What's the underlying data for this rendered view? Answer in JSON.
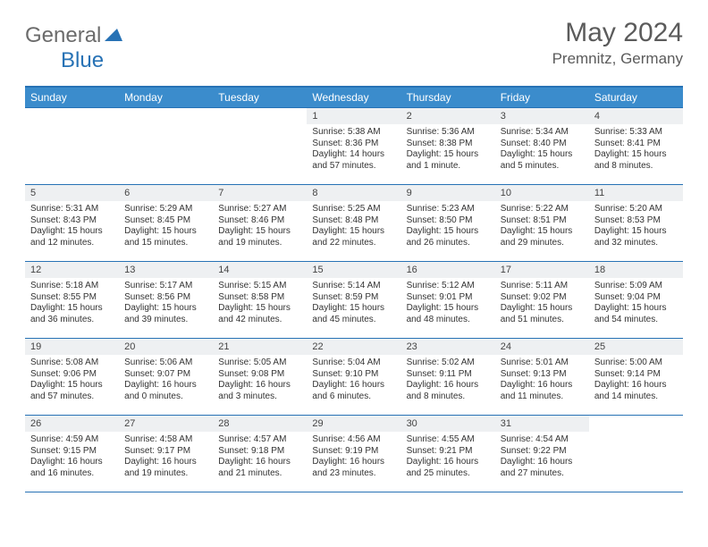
{
  "logo": {
    "text_a": "General",
    "text_b": "Blue"
  },
  "title": "May 2024",
  "location": "Premnitz, Germany",
  "colors": {
    "header_bg": "#3b8ccc",
    "border": "#2772b5",
    "daynum_bg": "#eef0f2",
    "text": "#333333",
    "title_text": "#5b5b5b"
  },
  "weekdays": [
    "Sunday",
    "Monday",
    "Tuesday",
    "Wednesday",
    "Thursday",
    "Friday",
    "Saturday"
  ],
  "weeks": [
    [
      {
        "n": "",
        "sr": "",
        "ss": "",
        "dl": ""
      },
      {
        "n": "",
        "sr": "",
        "ss": "",
        "dl": ""
      },
      {
        "n": "",
        "sr": "",
        "ss": "",
        "dl": ""
      },
      {
        "n": "1",
        "sr": "Sunrise: 5:38 AM",
        "ss": "Sunset: 8:36 PM",
        "dl": "Daylight: 14 hours and 57 minutes."
      },
      {
        "n": "2",
        "sr": "Sunrise: 5:36 AM",
        "ss": "Sunset: 8:38 PM",
        "dl": "Daylight: 15 hours and 1 minute."
      },
      {
        "n": "3",
        "sr": "Sunrise: 5:34 AM",
        "ss": "Sunset: 8:40 PM",
        "dl": "Daylight: 15 hours and 5 minutes."
      },
      {
        "n": "4",
        "sr": "Sunrise: 5:33 AM",
        "ss": "Sunset: 8:41 PM",
        "dl": "Daylight: 15 hours and 8 minutes."
      }
    ],
    [
      {
        "n": "5",
        "sr": "Sunrise: 5:31 AM",
        "ss": "Sunset: 8:43 PM",
        "dl": "Daylight: 15 hours and 12 minutes."
      },
      {
        "n": "6",
        "sr": "Sunrise: 5:29 AM",
        "ss": "Sunset: 8:45 PM",
        "dl": "Daylight: 15 hours and 15 minutes."
      },
      {
        "n": "7",
        "sr": "Sunrise: 5:27 AM",
        "ss": "Sunset: 8:46 PM",
        "dl": "Daylight: 15 hours and 19 minutes."
      },
      {
        "n": "8",
        "sr": "Sunrise: 5:25 AM",
        "ss": "Sunset: 8:48 PM",
        "dl": "Daylight: 15 hours and 22 minutes."
      },
      {
        "n": "9",
        "sr": "Sunrise: 5:23 AM",
        "ss": "Sunset: 8:50 PM",
        "dl": "Daylight: 15 hours and 26 minutes."
      },
      {
        "n": "10",
        "sr": "Sunrise: 5:22 AM",
        "ss": "Sunset: 8:51 PM",
        "dl": "Daylight: 15 hours and 29 minutes."
      },
      {
        "n": "11",
        "sr": "Sunrise: 5:20 AM",
        "ss": "Sunset: 8:53 PM",
        "dl": "Daylight: 15 hours and 32 minutes."
      }
    ],
    [
      {
        "n": "12",
        "sr": "Sunrise: 5:18 AM",
        "ss": "Sunset: 8:55 PM",
        "dl": "Daylight: 15 hours and 36 minutes."
      },
      {
        "n": "13",
        "sr": "Sunrise: 5:17 AM",
        "ss": "Sunset: 8:56 PM",
        "dl": "Daylight: 15 hours and 39 minutes."
      },
      {
        "n": "14",
        "sr": "Sunrise: 5:15 AM",
        "ss": "Sunset: 8:58 PM",
        "dl": "Daylight: 15 hours and 42 minutes."
      },
      {
        "n": "15",
        "sr": "Sunrise: 5:14 AM",
        "ss": "Sunset: 8:59 PM",
        "dl": "Daylight: 15 hours and 45 minutes."
      },
      {
        "n": "16",
        "sr": "Sunrise: 5:12 AM",
        "ss": "Sunset: 9:01 PM",
        "dl": "Daylight: 15 hours and 48 minutes."
      },
      {
        "n": "17",
        "sr": "Sunrise: 5:11 AM",
        "ss": "Sunset: 9:02 PM",
        "dl": "Daylight: 15 hours and 51 minutes."
      },
      {
        "n": "18",
        "sr": "Sunrise: 5:09 AM",
        "ss": "Sunset: 9:04 PM",
        "dl": "Daylight: 15 hours and 54 minutes."
      }
    ],
    [
      {
        "n": "19",
        "sr": "Sunrise: 5:08 AM",
        "ss": "Sunset: 9:06 PM",
        "dl": "Daylight: 15 hours and 57 minutes."
      },
      {
        "n": "20",
        "sr": "Sunrise: 5:06 AM",
        "ss": "Sunset: 9:07 PM",
        "dl": "Daylight: 16 hours and 0 minutes."
      },
      {
        "n": "21",
        "sr": "Sunrise: 5:05 AM",
        "ss": "Sunset: 9:08 PM",
        "dl": "Daylight: 16 hours and 3 minutes."
      },
      {
        "n": "22",
        "sr": "Sunrise: 5:04 AM",
        "ss": "Sunset: 9:10 PM",
        "dl": "Daylight: 16 hours and 6 minutes."
      },
      {
        "n": "23",
        "sr": "Sunrise: 5:02 AM",
        "ss": "Sunset: 9:11 PM",
        "dl": "Daylight: 16 hours and 8 minutes."
      },
      {
        "n": "24",
        "sr": "Sunrise: 5:01 AM",
        "ss": "Sunset: 9:13 PM",
        "dl": "Daylight: 16 hours and 11 minutes."
      },
      {
        "n": "25",
        "sr": "Sunrise: 5:00 AM",
        "ss": "Sunset: 9:14 PM",
        "dl": "Daylight: 16 hours and 14 minutes."
      }
    ],
    [
      {
        "n": "26",
        "sr": "Sunrise: 4:59 AM",
        "ss": "Sunset: 9:15 PM",
        "dl": "Daylight: 16 hours and 16 minutes."
      },
      {
        "n": "27",
        "sr": "Sunrise: 4:58 AM",
        "ss": "Sunset: 9:17 PM",
        "dl": "Daylight: 16 hours and 19 minutes."
      },
      {
        "n": "28",
        "sr": "Sunrise: 4:57 AM",
        "ss": "Sunset: 9:18 PM",
        "dl": "Daylight: 16 hours and 21 minutes."
      },
      {
        "n": "29",
        "sr": "Sunrise: 4:56 AM",
        "ss": "Sunset: 9:19 PM",
        "dl": "Daylight: 16 hours and 23 minutes."
      },
      {
        "n": "30",
        "sr": "Sunrise: 4:55 AM",
        "ss": "Sunset: 9:21 PM",
        "dl": "Daylight: 16 hours and 25 minutes."
      },
      {
        "n": "31",
        "sr": "Sunrise: 4:54 AM",
        "ss": "Sunset: 9:22 PM",
        "dl": "Daylight: 16 hours and 27 minutes."
      },
      {
        "n": "",
        "sr": "",
        "ss": "",
        "dl": ""
      }
    ]
  ]
}
